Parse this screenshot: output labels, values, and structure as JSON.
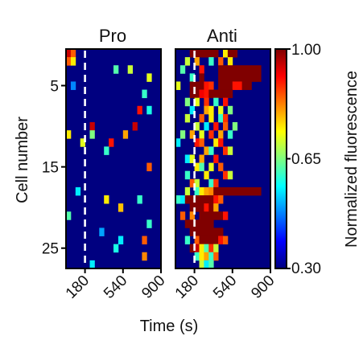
{
  "chart_data": {
    "type": "heatmap",
    "colormap": "jet",
    "ylabel": "Cell number",
    "xlabel": "Time (s)",
    "colorbar": {
      "label": "Normalized fluorescence",
      "min": 0.3,
      "max": 1.0,
      "ticks": [
        "1.00",
        "0.65",
        "0.30"
      ]
    },
    "y_ticks": [
      "5",
      "15",
      "25"
    ],
    "y_tick_values": [
      5,
      15,
      25
    ],
    "rows": 27,
    "columns": 20,
    "time_range": [
      0,
      900
    ],
    "panels": [
      {
        "title": "Pro",
        "x_ticks": [
          "180",
          "540",
          "900"
        ],
        "x_tick_values": [
          180,
          540,
          900
        ],
        "marker_time": 180,
        "activations": [
          [
            1,
            1,
            0.95
          ],
          [
            1,
            2,
            0.85
          ],
          [
            2,
            1,
            0.85
          ],
          [
            2,
            2,
            0.75
          ],
          [
            3,
            11,
            0.62
          ],
          [
            3,
            14,
            0.7
          ],
          [
            4,
            18,
            0.72
          ],
          [
            5,
            2,
            0.48
          ],
          [
            6,
            17,
            0.6
          ],
          [
            8,
            16,
            0.9
          ],
          [
            8,
            18,
            0.58
          ],
          [
            10,
            6,
            0.95
          ],
          [
            10,
            15,
            0.95
          ],
          [
            11,
            1,
            0.75
          ],
          [
            11,
            6,
            0.65
          ],
          [
            11,
            13,
            0.8
          ],
          [
            12,
            4,
            0.72
          ],
          [
            12,
            10,
            0.9
          ],
          [
            13,
            9,
            0.6
          ],
          [
            15,
            18,
            0.85
          ],
          [
            19,
            9,
            0.75
          ],
          [
            19,
            16,
            0.6
          ],
          [
            20,
            12,
            0.78
          ],
          [
            21,
            1,
            0.62
          ],
          [
            23,
            8,
            0.5
          ],
          [
            24,
            12,
            0.55
          ],
          [
            24,
            17,
            0.85
          ],
          [
            25,
            11,
            0.58
          ],
          [
            26,
            17,
            0.82
          ],
          [
            27,
            6,
            0.55
          ],
          [
            22,
            18,
            0.6
          ],
          [
            18,
            3,
            0.55
          ]
        ]
      },
      {
        "title": "Anti",
        "x_ticks": [
          "180",
          "540",
          "900"
        ],
        "x_tick_values": [
          180,
          540,
          900
        ],
        "marker_time": 180,
        "activations": [
          [
            1,
            4,
            1.0
          ],
          [
            1,
            5,
            1.0
          ],
          [
            1,
            6,
            1.0
          ],
          [
            1,
            7,
            1.0
          ],
          [
            1,
            8,
            1.0
          ],
          [
            1,
            9,
            1.0
          ],
          [
            1,
            11,
            0.75
          ],
          [
            1,
            12,
            1.0
          ],
          [
            1,
            13,
            1.0
          ],
          [
            2,
            3,
            0.7
          ],
          [
            2,
            5,
            0.8
          ],
          [
            2,
            8,
            0.6
          ],
          [
            2,
            10,
            0.85
          ],
          [
            2,
            12,
            0.75
          ],
          [
            3,
            2,
            0.62
          ],
          [
            3,
            6,
            0.9
          ],
          [
            3,
            10,
            1.0
          ],
          [
            3,
            11,
            1.0
          ],
          [
            3,
            12,
            1.0
          ],
          [
            3,
            13,
            1.0
          ],
          [
            3,
            14,
            1.0
          ],
          [
            3,
            15,
            1.0
          ],
          [
            3,
            16,
            1.0
          ],
          [
            3,
            17,
            1.0
          ],
          [
            3,
            18,
            1.0
          ],
          [
            4,
            4,
            0.6
          ],
          [
            4,
            6,
            1.0
          ],
          [
            4,
            10,
            1.0
          ],
          [
            4,
            11,
            1.0
          ],
          [
            4,
            12,
            1.0
          ],
          [
            4,
            13,
            1.0
          ],
          [
            4,
            14,
            1.0
          ],
          [
            4,
            15,
            1.0
          ],
          [
            4,
            16,
            1.0
          ],
          [
            4,
            17,
            1.0
          ],
          [
            4,
            18,
            1.0
          ],
          [
            5,
            1,
            0.72
          ],
          [
            5,
            4,
            1.0
          ],
          [
            5,
            5,
            1.0
          ],
          [
            5,
            6,
            1.0
          ],
          [
            5,
            7,
            0.9
          ],
          [
            5,
            8,
            0.88
          ],
          [
            5,
            10,
            1.0
          ],
          [
            5,
            11,
            1.0
          ],
          [
            5,
            12,
            1.0
          ],
          [
            5,
            13,
            0.9
          ],
          [
            5,
            14,
            0.9
          ],
          [
            5,
            15,
            1.0
          ],
          [
            5,
            16,
            1.0
          ],
          [
            6,
            4,
            1.0
          ],
          [
            6,
            5,
            1.0
          ],
          [
            6,
            6,
            0.92
          ],
          [
            6,
            7,
            0.9
          ],
          [
            6,
            8,
            1.0
          ],
          [
            6,
            9,
            1.0
          ],
          [
            6,
            10,
            1.0
          ],
          [
            6,
            11,
            1.0
          ],
          [
            6,
            12,
            1.0
          ],
          [
            7,
            3,
            0.65
          ],
          [
            7,
            5,
            0.72
          ],
          [
            7,
            7,
            0.88
          ],
          [
            7,
            9,
            0.6
          ],
          [
            7,
            11,
            0.9
          ],
          [
            8,
            4,
            0.55
          ],
          [
            8,
            7,
            0.8
          ],
          [
            8,
            8,
            0.75
          ],
          [
            8,
            10,
            0.72
          ],
          [
            8,
            12,
            0.65
          ],
          [
            9,
            3,
            0.7
          ],
          [
            9,
            6,
            0.85
          ],
          [
            9,
            8,
            0.75
          ],
          [
            9,
            10,
            0.6
          ],
          [
            9,
            11,
            0.88
          ],
          [
            10,
            5,
            0.7
          ],
          [
            10,
            7,
            0.55
          ],
          [
            10,
            9,
            0.9
          ],
          [
            10,
            11,
            0.85
          ],
          [
            10,
            13,
            0.65
          ],
          [
            11,
            2,
            0.65
          ],
          [
            11,
            4,
            0.8
          ],
          [
            11,
            6,
            0.72
          ],
          [
            11,
            8,
            0.88
          ],
          [
            11,
            10,
            0.8
          ],
          [
            11,
            12,
            0.6
          ],
          [
            12,
            1,
            0.55
          ],
          [
            12,
            5,
            0.9
          ],
          [
            12,
            6,
            0.85
          ],
          [
            12,
            9,
            0.75
          ],
          [
            12,
            10,
            0.9
          ],
          [
            13,
            7,
            0.8
          ],
          [
            13,
            8,
            0.6
          ],
          [
            13,
            11,
            0.88
          ],
          [
            13,
            12,
            0.7
          ],
          [
            14,
            3,
            0.55
          ],
          [
            14,
            4,
            0.72
          ],
          [
            14,
            6,
            0.8
          ],
          [
            14,
            9,
            0.9
          ],
          [
            15,
            5,
            0.75
          ],
          [
            15,
            6,
            0.62
          ],
          [
            15,
            8,
            0.72
          ],
          [
            15,
            10,
            0.85
          ],
          [
            16,
            3,
            0.6
          ],
          [
            16,
            7,
            0.75
          ],
          [
            16,
            11,
            0.88
          ],
          [
            16,
            12,
            0.7
          ],
          [
            17,
            4,
            0.85
          ],
          [
            17,
            5,
            0.7
          ],
          [
            17,
            8,
            0.6
          ],
          [
            17,
            9,
            0.88
          ],
          [
            18,
            3,
            0.7
          ],
          [
            18,
            5,
            0.6
          ],
          [
            18,
            6,
            0.75
          ],
          [
            18,
            7,
            0.8
          ],
          [
            18,
            8,
            0.82
          ],
          [
            18,
            9,
            1.0
          ],
          [
            18,
            10,
            1.0
          ],
          [
            18,
            11,
            1.0
          ],
          [
            18,
            12,
            1.0
          ],
          [
            18,
            13,
            1.0
          ],
          [
            18,
            14,
            1.0
          ],
          [
            18,
            15,
            1.0
          ],
          [
            18,
            16,
            1.0
          ],
          [
            18,
            17,
            1.0
          ],
          [
            18,
            18,
            1.0
          ],
          [
            19,
            1,
            0.6
          ],
          [
            19,
            2,
            0.55
          ],
          [
            19,
            3,
            1.0
          ],
          [
            19,
            4,
            1.0
          ],
          [
            19,
            5,
            1.0
          ],
          [
            19,
            6,
            1.0
          ],
          [
            19,
            7,
            1.0
          ],
          [
            19,
            8,
            1.0
          ],
          [
            19,
            9,
            0.9
          ],
          [
            19,
            10,
            0.85
          ],
          [
            20,
            4,
            1.0
          ],
          [
            20,
            5,
            1.0
          ],
          [
            20,
            6,
            1.0
          ],
          [
            20,
            7,
            0.9
          ],
          [
            20,
            8,
            1.0
          ],
          [
            20,
            9,
            0.8
          ],
          [
            21,
            2,
            0.85
          ],
          [
            21,
            4,
            0.82
          ],
          [
            21,
            6,
            1.0
          ],
          [
            21,
            7,
            1.0
          ],
          [
            21,
            8,
            1.0
          ],
          [
            21,
            9,
            1.0
          ],
          [
            21,
            10,
            1.0
          ],
          [
            21,
            11,
            0.9
          ],
          [
            22,
            3,
            1.0
          ],
          [
            22,
            4,
            1.0
          ],
          [
            22,
            5,
            1.0
          ],
          [
            22,
            6,
            1.0
          ],
          [
            22,
            7,
            1.0
          ],
          [
            22,
            8,
            1.0
          ],
          [
            23,
            4,
            1.0
          ],
          [
            23,
            5,
            1.0
          ],
          [
            23,
            6,
            1.0
          ],
          [
            23,
            7,
            1.0
          ],
          [
            23,
            8,
            1.0
          ],
          [
            23,
            9,
            1.0
          ],
          [
            23,
            10,
            1.0
          ],
          [
            24,
            3,
            0.6
          ],
          [
            24,
            5,
            0.85
          ],
          [
            24,
            6,
            1.0
          ],
          [
            24,
            7,
            1.0
          ],
          [
            24,
            8,
            1.0
          ],
          [
            24,
            9,
            1.0
          ],
          [
            24,
            10,
            0.9
          ],
          [
            24,
            11,
            0.85
          ],
          [
            25,
            4,
            1.0
          ],
          [
            25,
            5,
            0.95
          ],
          [
            25,
            6,
            0.75
          ],
          [
            25,
            7,
            0.62
          ],
          [
            25,
            8,
            0.88
          ],
          [
            25,
            9,
            0.7
          ],
          [
            26,
            5,
            0.6
          ],
          [
            26,
            6,
            0.75
          ],
          [
            26,
            7,
            0.8
          ],
          [
            26,
            8,
            0.6
          ],
          [
            26,
            9,
            0.85
          ],
          [
            27,
            6,
            0.7
          ],
          [
            27,
            7,
            0.55
          ],
          [
            27,
            8,
            0.62
          ]
        ]
      }
    ]
  }
}
